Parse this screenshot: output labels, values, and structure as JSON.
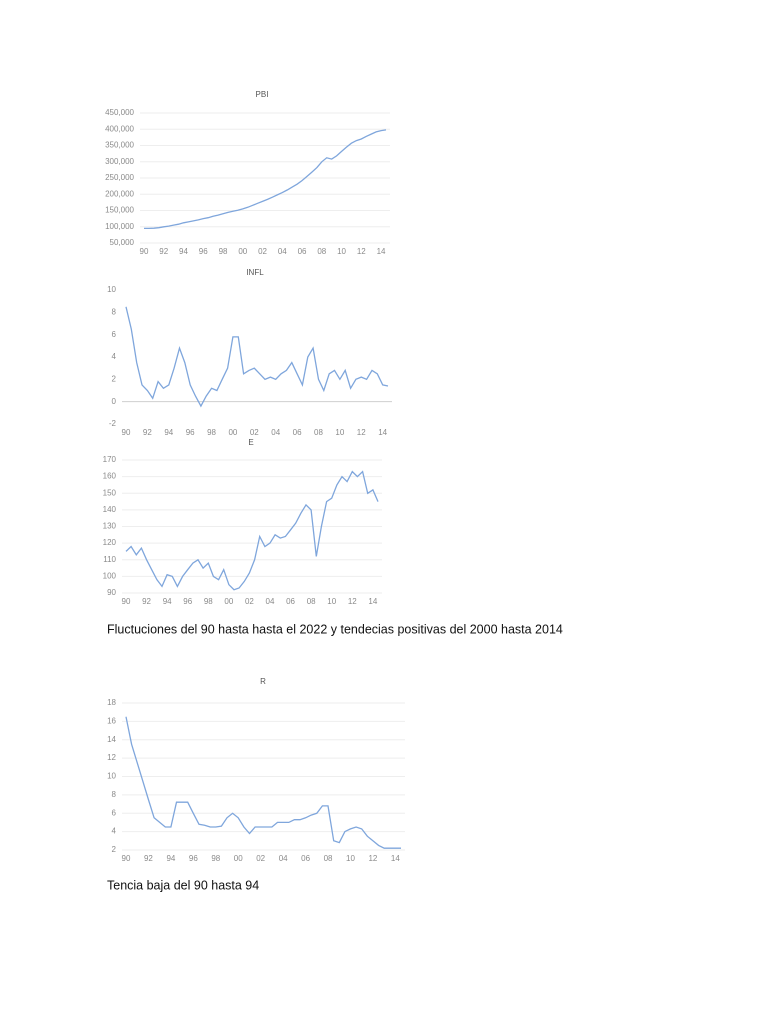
{
  "chart_data": [
    {
      "type": "line",
      "title": "PBI",
      "color": "#7fa6dc",
      "grid": true,
      "categories": [
        "90",
        null,
        null,
        null,
        "92",
        null,
        null,
        null,
        "94",
        null,
        null,
        null,
        "96",
        null,
        null,
        null,
        "98",
        null,
        null,
        null,
        "00",
        null,
        null,
        null,
        "02",
        null,
        null,
        null,
        "04",
        null,
        null,
        null,
        "06",
        null,
        null,
        null,
        "08",
        null,
        null,
        null,
        "10",
        null,
        null,
        null,
        "12",
        null,
        null,
        null,
        "14",
        null
      ],
      "values": [
        95000,
        95000,
        95500,
        97000,
        100000,
        102000,
        105000,
        108000,
        112000,
        115000,
        118000,
        121000,
        125000,
        128000,
        132000,
        136000,
        140000,
        144000,
        148000,
        151000,
        155000,
        160000,
        166000,
        172000,
        178000,
        184000,
        191000,
        198000,
        205000,
        213000,
        222000,
        231000,
        242000,
        255000,
        268000,
        282000,
        300000,
        312000,
        308000,
        318000,
        332000,
        345000,
        357000,
        365000,
        370000,
        378000,
        385000,
        392000,
        396000,
        398000
      ],
      "ylim": [
        50000,
        450000
      ],
      "yticks": [
        {
          "value": 50000,
          "label": "50,000"
        },
        {
          "value": 100000,
          "label": "100,000"
        },
        {
          "value": 150000,
          "label": "150,000"
        },
        {
          "value": 200000,
          "label": "200,000"
        },
        {
          "value": 250000,
          "label": "250,000"
        },
        {
          "value": 300000,
          "label": "300,000"
        },
        {
          "value": 350000,
          "label": "350,000"
        },
        {
          "value": 400000,
          "label": "400,000"
        },
        {
          "value": 450000,
          "label": "450,000"
        }
      ]
    },
    {
      "type": "line",
      "title": "INFL",
      "color": "#7fa6dc",
      "grid": false,
      "categories": [
        "90",
        null,
        null,
        null,
        "92",
        null,
        null,
        null,
        "94",
        null,
        null,
        null,
        "96",
        null,
        null,
        null,
        "98",
        null,
        null,
        null,
        "00",
        null,
        null,
        null,
        "02",
        null,
        null,
        null,
        "04",
        null,
        null,
        null,
        "06",
        null,
        null,
        null,
        "08",
        null,
        null,
        null,
        "10",
        null,
        null,
        null,
        "12",
        null,
        null,
        null,
        "14",
        null
      ],
      "values": [
        8.5,
        6.5,
        3.5,
        1.5,
        1.0,
        0.3,
        1.8,
        1.2,
        1.5,
        3.0,
        4.8,
        3.5,
        1.5,
        0.5,
        -0.4,
        0.5,
        1.2,
        1.0,
        2.0,
        3.0,
        5.8,
        5.8,
        2.5,
        2.8,
        3.0,
        2.5,
        2.0,
        2.2,
        2.0,
        2.5,
        2.8,
        3.5,
        2.5,
        1.5,
        4.0,
        4.8,
        2.0,
        1.0,
        2.5,
        2.8,
        2.0,
        2.8,
        1.2,
        2.0,
        2.2,
        2.0,
        2.8,
        2.5,
        1.5,
        1.4
      ],
      "ylim": [
        -2,
        10
      ],
      "yticks": [
        -2,
        0,
        2,
        4,
        6,
        8,
        10
      ]
    },
    {
      "type": "line",
      "title": "E",
      "color": "#7fa6dc",
      "grid": true,
      "categories": [
        "90",
        null,
        null,
        null,
        "92",
        null,
        null,
        null,
        "94",
        null,
        null,
        null,
        "96",
        null,
        null,
        null,
        "98",
        null,
        null,
        null,
        "00",
        null,
        null,
        null,
        "02",
        null,
        null,
        null,
        "04",
        null,
        null,
        null,
        "06",
        null,
        null,
        null,
        "08",
        null,
        null,
        null,
        "10",
        null,
        null,
        null,
        "12",
        null,
        null,
        null,
        "14",
        null
      ],
      "values": [
        115,
        118,
        113,
        117,
        110,
        104,
        98,
        94,
        101,
        100,
        94,
        100,
        104,
        108,
        110,
        105,
        108,
        100,
        98,
        104,
        95,
        92,
        93,
        97,
        102,
        110,
        124,
        118,
        120,
        125,
        123,
        124,
        128,
        132,
        138,
        143,
        140,
        112,
        130,
        145,
        147,
        155,
        160,
        157,
        163,
        160,
        163,
        150,
        152,
        145
      ],
      "ylim": [
        90,
        170
      ],
      "yticks": [
        90,
        100,
        110,
        120,
        130,
        140,
        150,
        160,
        170
      ]
    },
    {
      "type": "line",
      "title": "R",
      "color": "#7fa6dc",
      "grid": true,
      "categories": [
        "90",
        null,
        null,
        null,
        "92",
        null,
        null,
        null,
        "94",
        null,
        null,
        null,
        "96",
        null,
        null,
        null,
        "98",
        null,
        null,
        null,
        "00",
        null,
        null,
        null,
        "02",
        null,
        null,
        null,
        "04",
        null,
        null,
        null,
        "06",
        null,
        null,
        null,
        "08",
        null,
        null,
        null,
        "10",
        null,
        null,
        null,
        "12",
        null,
        null,
        null,
        "14",
        null
      ],
      "values": [
        16.5,
        13.5,
        11.5,
        9.5,
        7.5,
        5.5,
        5.0,
        4.5,
        4.5,
        7.2,
        7.2,
        7.2,
        6.0,
        4.8,
        4.7,
        4.5,
        4.5,
        4.6,
        5.5,
        6.0,
        5.5,
        4.5,
        3.8,
        4.5,
        4.5,
        4.5,
        4.5,
        5.0,
        5.0,
        5.0,
        5.3,
        5.3,
        5.5,
        5.8,
        6.0,
        6.8,
        6.8,
        3.0,
        2.8,
        4.0,
        4.3,
        4.5,
        4.3,
        3.5,
        3.0,
        2.5,
        2.2,
        2.2,
        2.2,
        2.2
      ],
      "ylim": [
        2,
        18
      ],
      "yticks": [
        2,
        4,
        6,
        8,
        10,
        12,
        14,
        16,
        18
      ]
    }
  ],
  "captions": [
    "Fluctuciones del 90 hasta hasta el 2022 y tendecias positivas del 2000 hasta 2014",
    "Tencia baja del 90 hasta 94"
  ]
}
